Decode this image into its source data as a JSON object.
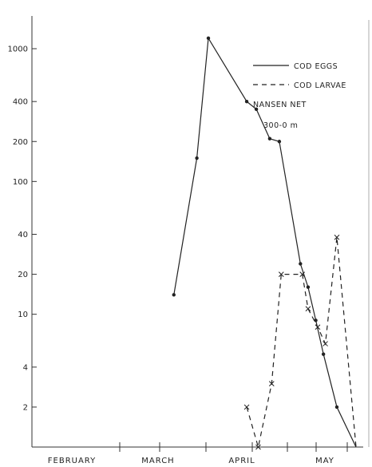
{
  "chart_data": {
    "type": "line",
    "title": "",
    "xlabel": "",
    "ylabel": "",
    "y_scale": "log",
    "ylim": [
      1,
      2000
    ],
    "y_ticks": [
      {
        "value": 2,
        "label": "2"
      },
      {
        "value": 4,
        "label": "4"
      },
      {
        "value": 10,
        "label": "10"
      },
      {
        "value": 20,
        "label": "20"
      },
      {
        "value": 40,
        "label": "40"
      },
      {
        "value": 100,
        "label": "100"
      },
      {
        "value": 200,
        "label": "200"
      },
      {
        "value": 400,
        "label": "400"
      },
      {
        "value": 1000,
        "label": "1000"
      }
    ],
    "x_months": [
      "FEBRUARY",
      "MARCH",
      "APRIL",
      "MAY"
    ],
    "x_range_days": [
      1,
      165
    ],
    "legend": {
      "placement": "top-right",
      "entries": [
        "COD EGGS",
        "COD LARVAE"
      ],
      "note_lines": [
        "NANSEN NET",
        "300-0 m"
      ]
    },
    "series": [
      {
        "name": "COD EGGS",
        "style": "solid",
        "marker": "dot",
        "points": [
          {
            "day": 75,
            "y": 14
          },
          {
            "day": 87,
            "y": 150
          },
          {
            "day": 93,
            "y": 1200
          },
          {
            "day": 113,
            "y": 400
          },
          {
            "day": 118,
            "y": 350
          },
          {
            "day": 125,
            "y": 210
          },
          {
            "day": 130,
            "y": 200
          },
          {
            "day": 141,
            "y": 24
          },
          {
            "day": 145,
            "y": 16
          },
          {
            "day": 149,
            "y": 9
          },
          {
            "day": 153,
            "y": 5
          },
          {
            "day": 160,
            "y": 2
          },
          {
            "day": 170,
            "y": 1
          }
        ]
      },
      {
        "name": "COD LARVAE",
        "style": "dashed",
        "marker": "x",
        "points": [
          {
            "day": 113,
            "y": 2
          },
          {
            "day": 119,
            "y": 1
          },
          {
            "day": 126,
            "y": 3
          },
          {
            "day": 131,
            "y": 20
          },
          {
            "day": 142,
            "y": 20
          },
          {
            "day": 145,
            "y": 11
          },
          {
            "day": 150,
            "y": 8
          },
          {
            "day": 154,
            "y": 6
          },
          {
            "day": 160,
            "y": 38
          },
          {
            "day": 170,
            "y": 1
          }
        ]
      }
    ]
  }
}
